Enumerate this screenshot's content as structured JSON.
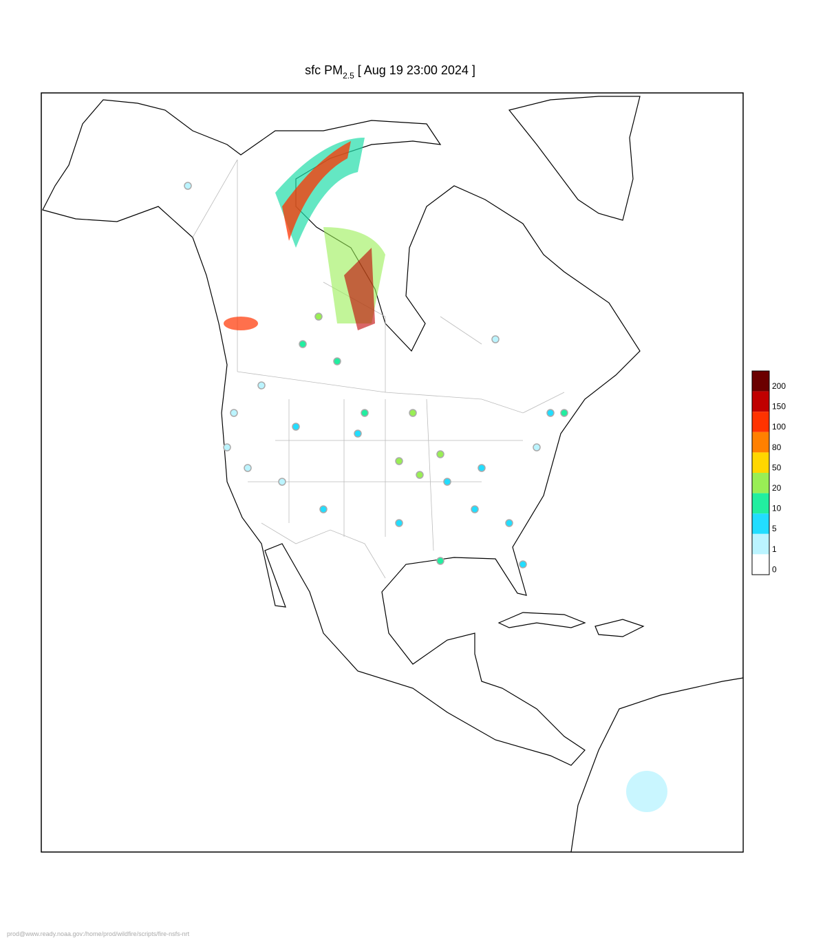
{
  "header": {
    "title_main": "sfc PM",
    "title_subscript": "2.5",
    "title_time": "[ Aug 19 23:00 2024 ]"
  },
  "legend": {
    "levels": [
      200,
      150,
      100,
      80,
      50,
      20,
      10,
      5,
      1,
      0
    ],
    "colors": [
      "#6b0000",
      "#c00000",
      "#ff3300",
      "#ff8000",
      "#ffd700",
      "#99ee55",
      "#22eea0",
      "#22ddff",
      "#bbf4ff",
      "#ffffff"
    ]
  },
  "footer": {
    "path": "prod@www.ready.noaa.gov:/home/prod/wildfire/scripts/fire-nsfs-nrt"
  }
}
